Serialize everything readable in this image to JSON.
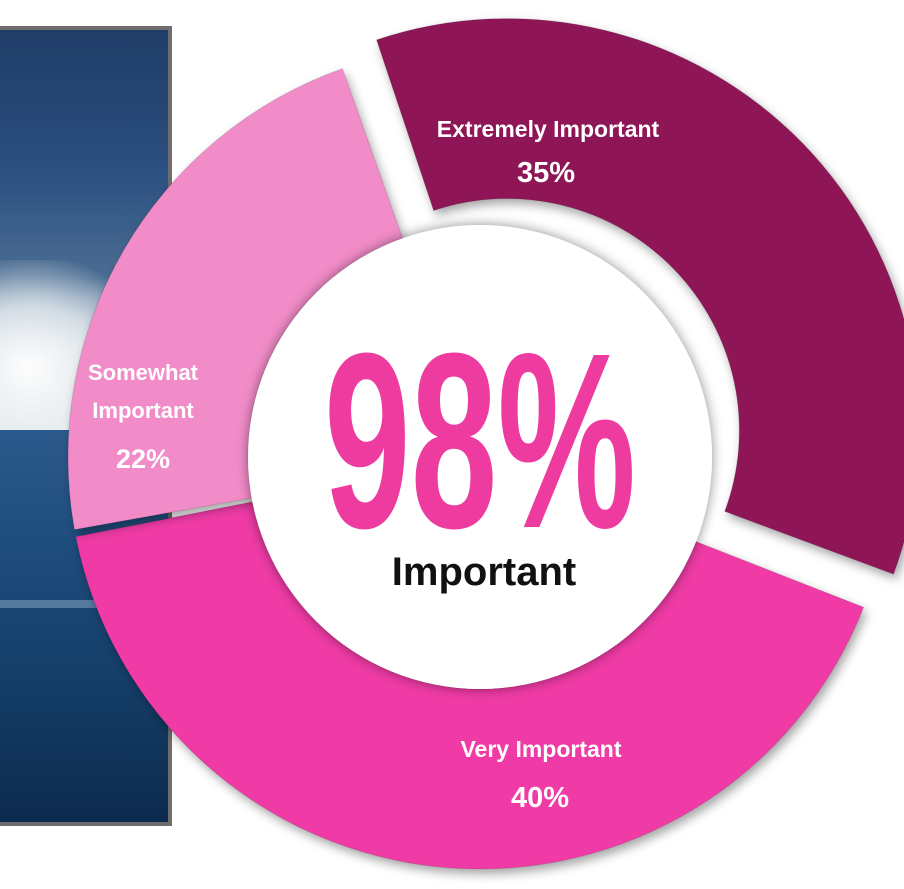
{
  "chart_data": {
    "type": "pie",
    "style": "donut",
    "slices": [
      {
        "label": "Extremely Important",
        "value": 35,
        "display": "35%",
        "color": "#8e1557"
      },
      {
        "label": "Very Important",
        "value": 40,
        "display": "40%",
        "color": "#f03aa6"
      },
      {
        "label": "Somewhat Important",
        "value": 22,
        "display": "22%",
        "color": "#f28cc9"
      }
    ],
    "center": {
      "value": "98%",
      "label": "Important",
      "value_color": "#ee3ba0"
    },
    "exploded_slice": "Extremely Important"
  },
  "labels": {
    "extremely_line1": "Extremely Important",
    "very_line1": "Very Important",
    "somewhat_line1": "Somewhat",
    "somewhat_line2": "Important"
  },
  "colors": {
    "photo_frame": "#6d6d6d",
    "label_light": "#ffffff"
  }
}
